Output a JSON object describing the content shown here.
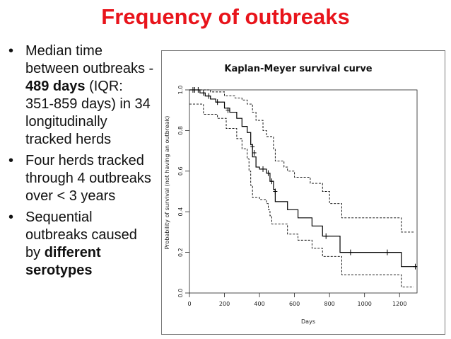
{
  "slide": {
    "title": "Frequency of outbreaks",
    "bullets": [
      {
        "segments": [
          {
            "text": "Median time between outbreaks - ",
            "bold": false
          },
          {
            "text": "489 days",
            "bold": true
          },
          {
            "text": " (IQR: 351-859 days) in 34 longitudinally tracked herds",
            "bold": false
          }
        ]
      },
      {
        "segments": [
          {
            "text": "Four herds tracked through 4 outbreaks over < 3 years",
            "bold": false
          }
        ]
      },
      {
        "segments": [
          {
            "text": "Sequential outbreaks caused by ",
            "bold": false
          },
          {
            "text": "different serotypes",
            "bold": true
          }
        ]
      }
    ]
  },
  "chart_data": {
    "type": "line",
    "title": "Kaplan-Meyer survival curve",
    "xlabel": "Days",
    "ylabel": "Probability of survival (not having an outbreak)",
    "xlim": [
      0,
      1300
    ],
    "ylim": [
      0,
      1.0
    ],
    "xticks": [
      0,
      200,
      400,
      600,
      800,
      1000,
      1200
    ],
    "yticks": [
      0.0,
      0.2,
      0.4,
      0.6,
      0.8,
      1.0
    ],
    "grid": false,
    "series": [
      {
        "role": "estimate",
        "style": "solid",
        "steps": [
          [
            0,
            1.0
          ],
          [
            45,
            1.0
          ],
          [
            60,
            0.985
          ],
          [
            90,
            0.97
          ],
          [
            120,
            0.955
          ],
          [
            150,
            0.94
          ],
          [
            200,
            0.91
          ],
          [
            230,
            0.89
          ],
          [
            270,
            0.86
          ],
          [
            300,
            0.82
          ],
          [
            330,
            0.79
          ],
          [
            350,
            0.73
          ],
          [
            360,
            0.67
          ],
          [
            380,
            0.62
          ],
          [
            400,
            0.61
          ],
          [
            440,
            0.59
          ],
          [
            460,
            0.55
          ],
          [
            480,
            0.51
          ],
          [
            490,
            0.45
          ],
          [
            550,
            0.45
          ],
          [
            560,
            0.41
          ],
          [
            620,
            0.37
          ],
          [
            700,
            0.33
          ],
          [
            760,
            0.28
          ],
          [
            860,
            0.2
          ],
          [
            1200,
            0.2
          ],
          [
            1210,
            0.13
          ],
          [
            1300,
            0.13
          ]
        ],
        "censored": [
          [
            20,
            1.0
          ],
          [
            30,
            1.0
          ],
          [
            50,
            1.0
          ],
          [
            80,
            0.985
          ],
          [
            110,
            0.97
          ],
          [
            160,
            0.94
          ],
          [
            220,
            0.9
          ],
          [
            360,
            0.72
          ],
          [
            370,
            0.69
          ],
          [
            420,
            0.61
          ],
          [
            450,
            0.59
          ],
          [
            470,
            0.55
          ],
          [
            490,
            0.5
          ],
          [
            780,
            0.28
          ],
          [
            920,
            0.2
          ],
          [
            1130,
            0.2
          ],
          [
            1290,
            0.13
          ]
        ]
      },
      {
        "role": "upper-ci",
        "style": "dashed",
        "steps": [
          [
            0,
            1.0
          ],
          [
            100,
            1.0
          ],
          [
            120,
            0.99
          ],
          [
            180,
            0.99
          ],
          [
            200,
            0.97
          ],
          [
            260,
            0.96
          ],
          [
            300,
            0.95
          ],
          [
            330,
            0.93
          ],
          [
            360,
            0.89
          ],
          [
            380,
            0.85
          ],
          [
            420,
            0.8
          ],
          [
            440,
            0.77
          ],
          [
            480,
            0.71
          ],
          [
            490,
            0.65
          ],
          [
            540,
            0.62
          ],
          [
            560,
            0.6
          ],
          [
            600,
            0.57
          ],
          [
            690,
            0.54
          ],
          [
            760,
            0.5
          ],
          [
            800,
            0.44
          ],
          [
            870,
            0.37
          ],
          [
            1200,
            0.37
          ],
          [
            1210,
            0.3
          ],
          [
            1280,
            0.3
          ]
        ]
      },
      {
        "role": "lower-ci",
        "style": "dashed",
        "steps": [
          [
            0,
            0.93
          ],
          [
            70,
            0.93
          ],
          [
            80,
            0.88
          ],
          [
            160,
            0.86
          ],
          [
            210,
            0.81
          ],
          [
            270,
            0.76
          ],
          [
            300,
            0.71
          ],
          [
            330,
            0.66
          ],
          [
            340,
            0.6
          ],
          [
            350,
            0.53
          ],
          [
            360,
            0.47
          ],
          [
            400,
            0.46
          ],
          [
            440,
            0.44
          ],
          [
            450,
            0.41
          ],
          [
            460,
            0.38
          ],
          [
            470,
            0.34
          ],
          [
            560,
            0.29
          ],
          [
            620,
            0.26
          ],
          [
            700,
            0.22
          ],
          [
            760,
            0.18
          ],
          [
            870,
            0.09
          ],
          [
            1200,
            0.09
          ],
          [
            1210,
            0.03
          ],
          [
            1280,
            0.03
          ]
        ]
      }
    ]
  }
}
